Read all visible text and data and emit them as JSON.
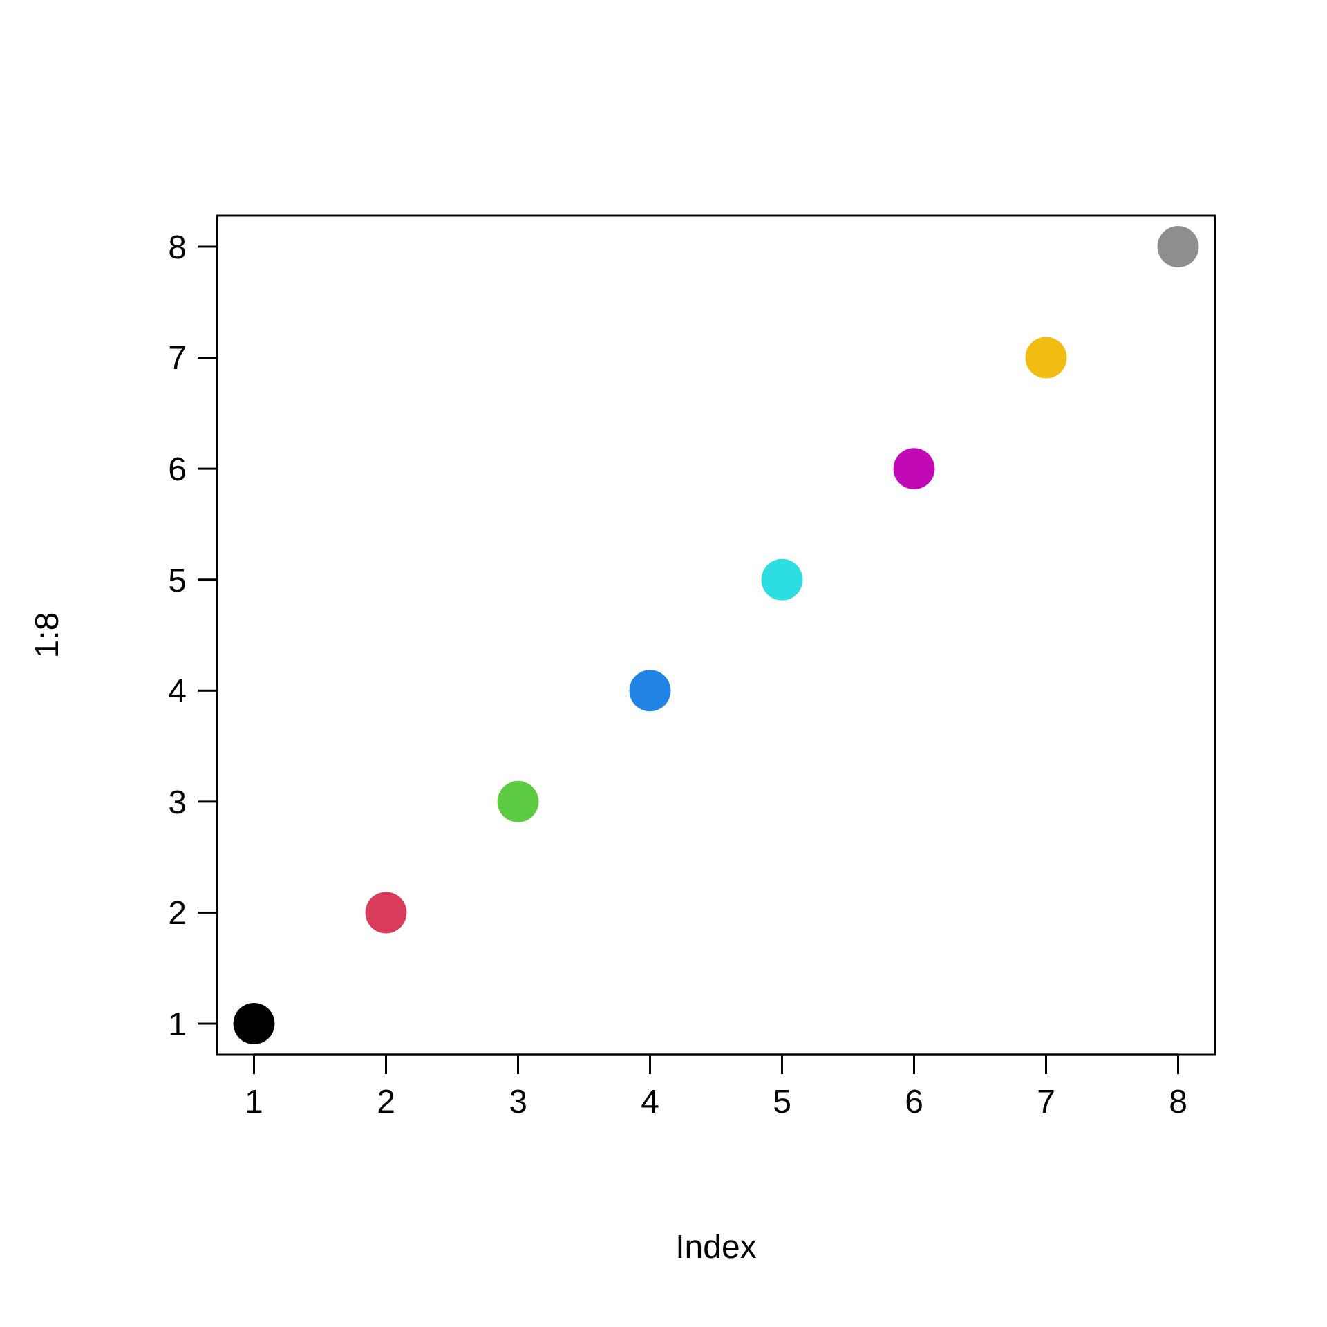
{
  "chart_data": {
    "type": "scatter",
    "xlabel": "Index",
    "ylabel": "1:8",
    "x": [
      1,
      2,
      3,
      4,
      5,
      6,
      7,
      8
    ],
    "values": [
      1,
      2,
      3,
      4,
      5,
      6,
      7,
      8
    ],
    "colors": [
      "#000000",
      "#d83c5a",
      "#5ccb42",
      "#2183e3",
      "#2cdde2",
      "#c209b6",
      "#f2bd12",
      "#8e8e8e"
    ],
    "xlim": [
      0.72,
      8.28
    ],
    "ylim": [
      0.72,
      8.28
    ],
    "xticks": [
      1,
      2,
      3,
      4,
      5,
      6,
      7,
      8
    ],
    "yticks": [
      1,
      2,
      3,
      4,
      5,
      6,
      7,
      8
    ],
    "marker": "circle",
    "grid": false
  }
}
